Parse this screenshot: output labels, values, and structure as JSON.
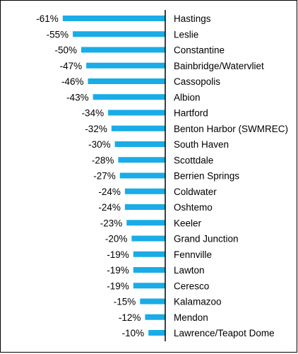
{
  "chart_data": {
    "type": "bar",
    "orientation": "horizontal",
    "title": "",
    "xlabel": "",
    "ylabel": "",
    "categories": [
      "Hastings",
      "Leslie",
      "Constantine",
      "Bainbridge/Watervliet",
      "Cassopolis",
      "Albion",
      "Hartford",
      "Benton Harbor (SWMREC)",
      "South Haven",
      "Scottdale",
      "Berrien Springs",
      "Coldwater",
      "Oshtemo",
      "Keeler",
      "Grand Junction",
      "Fennville",
      "Lawton",
      "Ceresco",
      "Kalamazoo",
      "Mendon",
      "Lawrence/Teapot Dome"
    ],
    "values": [
      -61,
      -55,
      -50,
      -47,
      -46,
      -43,
      -34,
      -32,
      -30,
      -28,
      -27,
      -24,
      -24,
      -23,
      -20,
      -19,
      -19,
      -19,
      -15,
      -12,
      -10
    ],
    "value_labels": [
      "-61%",
      "-55%",
      "-50%",
      "-47%",
      "-46%",
      "-43%",
      "-34%",
      "-32%",
      "-30%",
      "-28%",
      "-27%",
      "-24%",
      "-24%",
      "-23%",
      "-20%",
      "-19%",
      "-19%",
      "-19%",
      "-15%",
      "-12%",
      "-10%"
    ],
    "xlim": [
      -61,
      0
    ],
    "grid": false,
    "legend": "none",
    "bar_color": "#1AACE6",
    "axis_color": "#000000"
  }
}
